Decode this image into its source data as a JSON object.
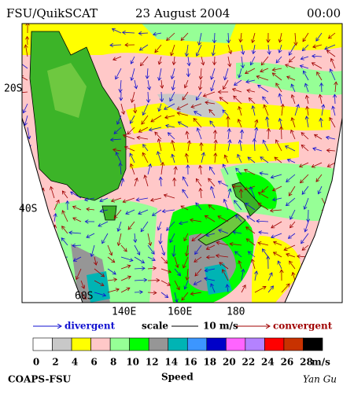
{
  "header": {
    "title": "FSU/QuikSCAT",
    "date": "23 August 2004",
    "time": "00:00"
  },
  "map": {
    "lat_labels": [
      "20S",
      "40S",
      "60S"
    ],
    "lon_labels": [
      "140E",
      "160E",
      "180"
    ]
  },
  "legend": {
    "divergent": "divergent",
    "scale": "scale",
    "scale_value": "10 m/s",
    "convergent": "convergent"
  },
  "colorbar": {
    "colors": [
      "#ffffff",
      "#c8c8c8",
      "#ffff00",
      "#ffc8c8",
      "#96ff96",
      "#00ff00",
      "#969696",
      "#00b4b4",
      "#3c96ff",
      "#0000c8",
      "#ff64ff",
      "#b482ff",
      "#ff0000",
      "#c83200",
      "#000000"
    ],
    "ticks": [
      0,
      2,
      4,
      6,
      8,
      10,
      12,
      14,
      16,
      18,
      20,
      22,
      24,
      26,
      28
    ],
    "unit": "m/s",
    "label": "Speed"
  },
  "footer": {
    "left": "COAPS-FSU",
    "right": "Yan Gu"
  }
}
